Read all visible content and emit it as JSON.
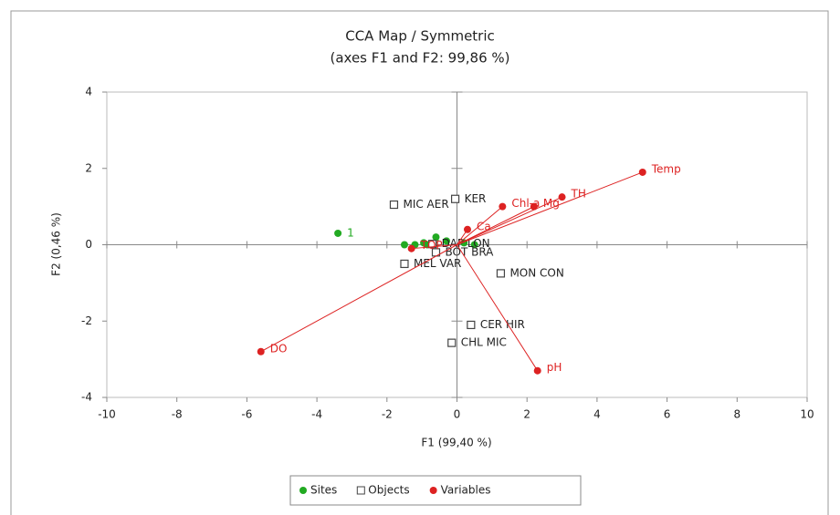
{
  "chart_data": {
    "type": "scatter",
    "title": "CCA Map / Symmetric",
    "subtitle": "(axes F1 and F2: 99,86 %)",
    "x_label": "F1 (99,40 %)",
    "y_label": "F2 (0,46 %)",
    "xlim": [
      -10,
      10
    ],
    "ylim": [
      -4,
      4
    ],
    "xticks": [
      -10,
      -8,
      -6,
      -4,
      -2,
      0,
      2,
      4,
      6,
      8,
      10
    ],
    "yticks": [
      -4,
      -2,
      0,
      2,
      4
    ],
    "legend": "bottom",
    "series": [
      {
        "name": "Sites",
        "color": "#22aa22",
        "marker": "circle",
        "vectors": false,
        "x": [
          -3.4,
          -1.5,
          -1.2,
          -0.95,
          -0.85,
          -0.6,
          -0.3,
          0.2,
          0.5
        ],
        "values": [
          0.3,
          0.0,
          0.0,
          0.05,
          0.0,
          0.2,
          0.1,
          0.05,
          0.0
        ],
        "labels": [
          "1",
          null,
          null,
          "2",
          null,
          null,
          null,
          null,
          null
        ]
      },
      {
        "name": "Objects",
        "color": "#444444",
        "marker": "square",
        "vectors": false,
        "x": [
          -1.8,
          -0.05,
          -0.7,
          -0.6,
          -1.5,
          1.25,
          0.4,
          -0.15
        ],
        "values": [
          1.05,
          1.2,
          0.02,
          -0.2,
          -0.5,
          -0.75,
          -2.1,
          -2.57
        ],
        "labels": [
          "MIC AER",
          "KER",
          "DAP LON",
          "BOT BRA",
          "MEL VAR",
          "MON CON",
          "CER HIR",
          "CHL MIC"
        ]
      },
      {
        "name": "Variables",
        "color": "#dd2222",
        "marker": "circle",
        "vectors": true,
        "x": [
          5.3,
          3.0,
          2.2,
          1.3,
          0.3,
          -1.3,
          -5.6,
          2.3
        ],
        "values": [
          1.9,
          1.25,
          1.0,
          1.0,
          0.4,
          -0.1,
          -2.8,
          -3.3
        ],
        "labels": [
          "Temp",
          "TH",
          "Mg",
          "Chl-a",
          "Ca",
          "TOP",
          "DO",
          "pH"
        ]
      }
    ]
  }
}
